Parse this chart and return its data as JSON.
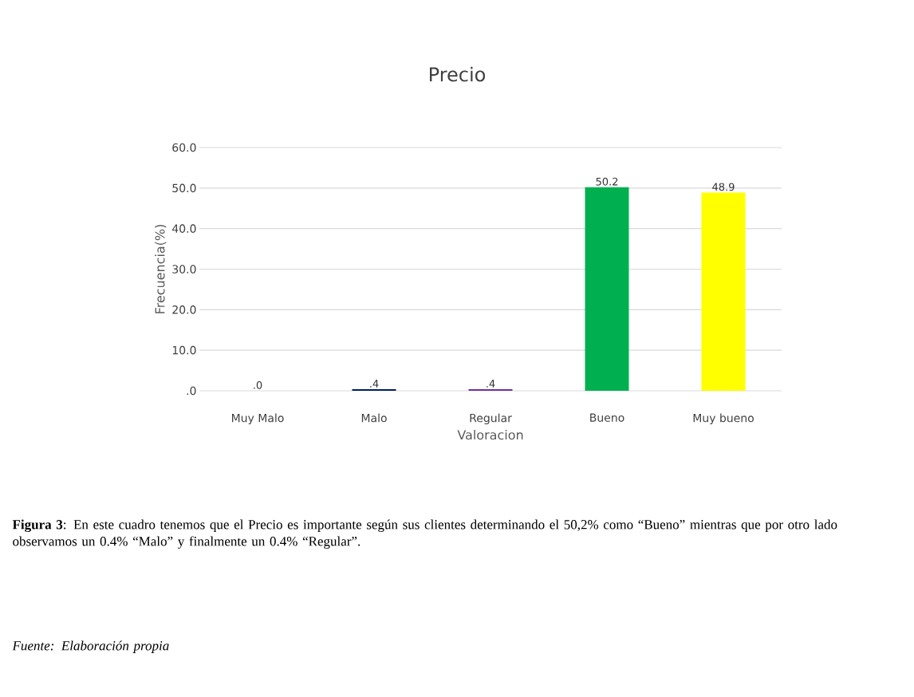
{
  "chart_data": {
    "type": "bar",
    "title": "Precio",
    "xlabel": "Valoracion",
    "ylabel": "Frecuencia(%)",
    "categories": [
      "Muy Malo",
      "Malo",
      "Regular",
      "Bueno",
      "Muy bueno"
    ],
    "values": [
      0,
      0.4,
      0.4,
      50.2,
      48.9
    ],
    "colors": [
      "#000000",
      "#002060",
      "#7030a0",
      "#00b050",
      "#ffff00"
    ],
    "value_labels": [
      ".0",
      ".4",
      ".4",
      "50.2",
      "48.9"
    ],
    "ylim": [
      0,
      60
    ],
    "yticks": [
      {
        "value": 0,
        "label": ".0"
      },
      {
        "value": 10,
        "label": "10.0"
      },
      {
        "value": 20,
        "label": "20.0"
      },
      {
        "value": 30,
        "label": "30.0"
      },
      {
        "value": 40,
        "label": "40.0"
      },
      {
        "value": 50,
        "label": "50.0"
      },
      {
        "value": 60,
        "label": "60.0"
      }
    ],
    "grid": "y",
    "annotations": [
      "**Figura 3**: En este cuadro tenemos que el Precio es importante según sus clientes determinando el 50,2% como “Bueno” mientras que por otro lado observamos un 0.4% “Malo” y finalmente un 0.4% “Regular”.",
      "*Fuente: Elaboración propia*"
    ]
  }
}
